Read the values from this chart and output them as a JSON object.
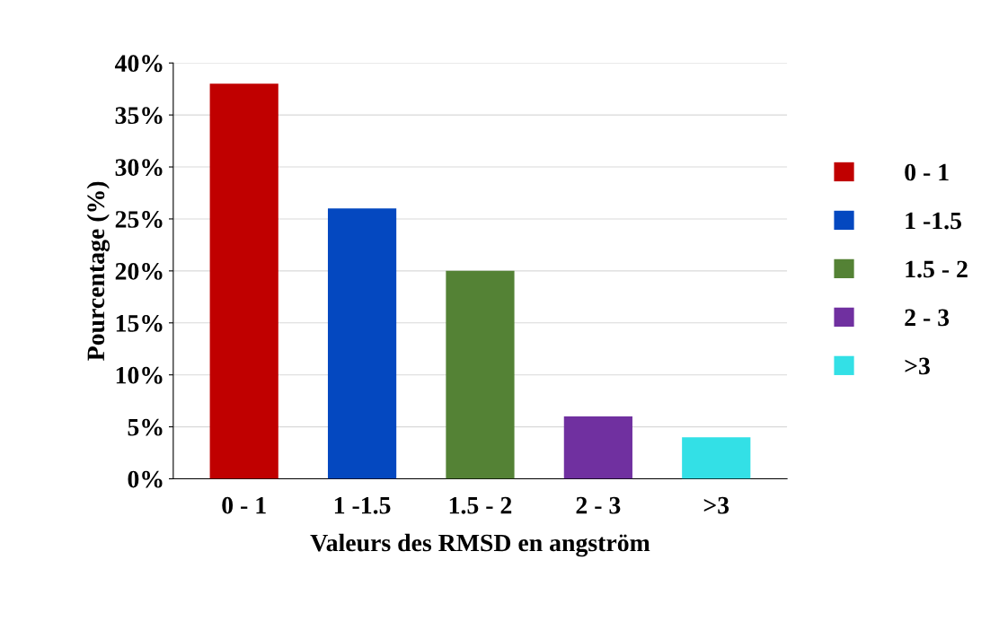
{
  "chart_data": {
    "type": "bar",
    "xlabel": "Valeurs des RMSD en angström",
    "ylabel": "Pourcentage (%)",
    "categories": [
      "0 - 1",
      "1 -1.5",
      "1.5 - 2",
      "2 - 3",
      ">3"
    ],
    "series": [
      {
        "name": "0 - 1",
        "color": "#c00000",
        "values": [
          38,
          null,
          null,
          null,
          null
        ]
      },
      {
        "name": "1 -1.5",
        "color": "#0448c0",
        "values": [
          null,
          26,
          null,
          null,
          null
        ]
      },
      {
        "name": "1.5 - 2",
        "color": "#548235",
        "values": [
          null,
          null,
          20,
          null,
          null
        ]
      },
      {
        "name": "2 - 3",
        "color": "#7030a0",
        "values": [
          null,
          null,
          null,
          6,
          null
        ]
      },
      {
        "name": ">3",
        "color": "#33e0e6",
        "values": [
          null,
          null,
          null,
          null,
          4
        ]
      }
    ],
    "ylim": [
      0,
      40
    ],
    "yticks": [
      {
        "value": 0,
        "label": "0%"
      },
      {
        "value": 5,
        "label": "5%"
      },
      {
        "value": 10,
        "label": "10%"
      },
      {
        "value": 15,
        "label": "15%"
      },
      {
        "value": 20,
        "label": "20%"
      },
      {
        "value": 25,
        "label": "25%"
      },
      {
        "value": 30,
        "label": "30%"
      },
      {
        "value": 35,
        "label": "35%"
      },
      {
        "value": 40,
        "label": "40%"
      }
    ],
    "grid": "y",
    "legend": "right"
  }
}
